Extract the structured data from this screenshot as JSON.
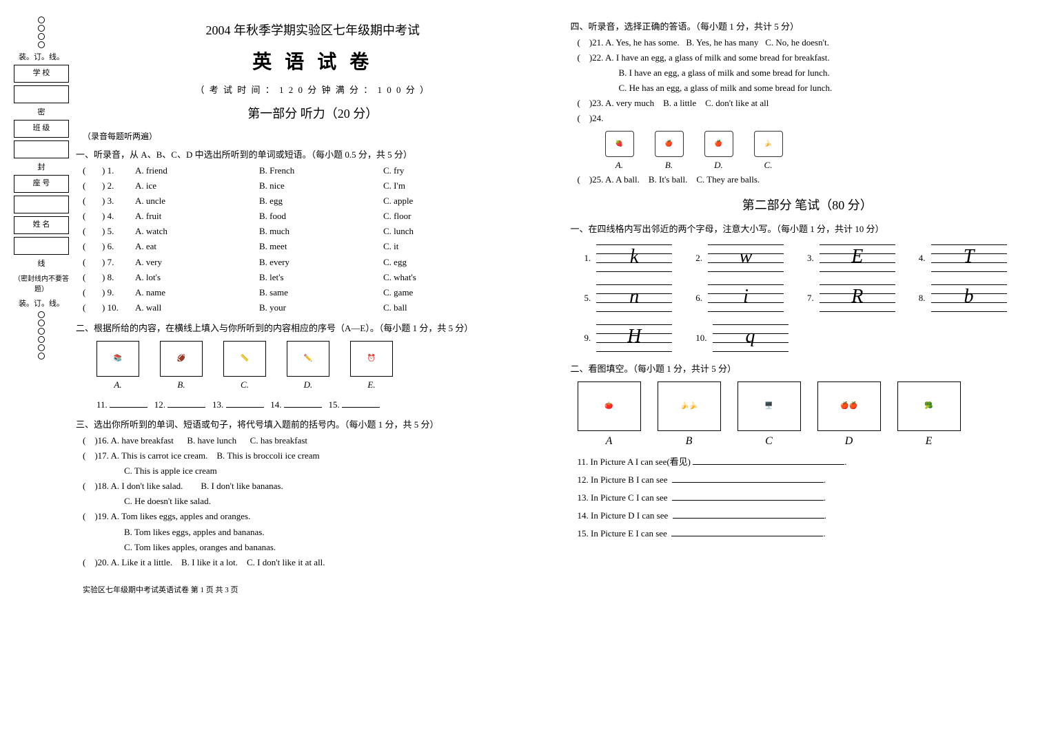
{
  "header": {
    "title": "2004 年秋季学期实验区七年级期中考试",
    "subject": "英 语 试 卷",
    "timeline": "（ 考 试 时 间 ：  1 2 0 分 钟     满 分 ：   1 0 0 分 ）"
  },
  "part1": {
    "heading": "第一部分  听力（20 分）",
    "note": "（录音每题听两遍）",
    "s1": {
      "head": "一、听录音，从 A、B、C、D 中选出所听到的单词或短语。（每小题 0.5 分，共 5 分）",
      "rows": [
        {
          "n": "1.",
          "a": "A. friend",
          "b": "B. French",
          "c": "C. fry"
        },
        {
          "n": "2.",
          "a": "A. ice",
          "b": "B. nice",
          "c": "C. I'm"
        },
        {
          "n": "3.",
          "a": "A. uncle",
          "b": "B. egg",
          "c": "C. apple"
        },
        {
          "n": "4.",
          "a": "A. fruit",
          "b": "B. food",
          "c": "C. floor"
        },
        {
          "n": "5.",
          "a": "A. watch",
          "b": "B. much",
          "c": "C. lunch"
        },
        {
          "n": "6.",
          "a": "A. eat",
          "b": "B. meet",
          "c": "C. it"
        },
        {
          "n": "7.",
          "a": "A. very",
          "b": "B. every",
          "c": "C. egg"
        },
        {
          "n": "8.",
          "a": "A. lot's",
          "b": "B. let's",
          "c": "C. what's"
        },
        {
          "n": "9.",
          "a": "A. name",
          "b": "B. same",
          "c": "C. game"
        },
        {
          "n": "10.",
          "a": "A. wall",
          "b": "B. your",
          "c": "C. ball"
        }
      ]
    },
    "s2": {
      "head": "二、根据所给的内容，在横线上填入与你所听到的内容相应的序号（A—E）。（每小题 1 分，共 5 分）",
      "letters": [
        "A.",
        "B.",
        "C.",
        "D.",
        "E."
      ],
      "nums": [
        "11.",
        "12.",
        "13.",
        "14.",
        "15."
      ]
    },
    "s3": {
      "head": "三、选出你所听到的单词、短语或句子，将代号填入题前的括号内。（每小题 1 分，共 5 分）",
      "q16": {
        "n": ")16.",
        "a": "A. have breakfast",
        "b": "B. have lunch",
        "c": "C. has breakfast"
      },
      "q17": {
        "n": ")17.",
        "a": "A. This is carrot ice cream.",
        "b": "B. This is broccoli ice cream",
        "c": "C. This is apple ice cream"
      },
      "q18": {
        "n": ")18.",
        "a": "A. I don't like salad.",
        "b": "B. I don't like bananas.",
        "c": "C. He doesn't like salad."
      },
      "q19": {
        "n": ")19.",
        "a": "A. Tom likes eggs, apples and oranges.",
        "b": "B. Tom likes eggs, apples and bananas.",
        "c": "C. Tom likes apples, oranges and bananas."
      },
      "q20": {
        "n": ")20.",
        "a": "A. Like it a little.",
        "b": "B. I like it a lot.",
        "c": "C. I don't like it at all."
      }
    },
    "footer": "实验区七年级期中考试英语试卷  第 1 页 共 3 页"
  },
  "part_right": {
    "s4": {
      "head": "四、听录音，选择正确的答语。（每小题 1 分，共计 5 分）",
      "q21": {
        "n": ")21.",
        "a": "A. Yes, he has some.",
        "b": "B. Yes, he has many",
        "c": "C. No, he doesn't."
      },
      "q22": {
        "n": ")22.",
        "a": "A. I have an egg, a glass of milk and some bread for breakfast.",
        "b": "B. I have an egg, a glass of milk and some bread for lunch.",
        "c": "C. He has an egg, a glass of milk and some bread for lunch."
      },
      "q23": {
        "n": ")23.",
        "a": "A. very much",
        "b": "B. a little",
        "c": "C. don't like at all"
      },
      "q24": {
        "n": ")24.",
        "letters": [
          "A.",
          "B.",
          "D.",
          "C."
        ]
      },
      "q25": {
        "n": ")25.",
        "a": "A. A ball.",
        "b": "B. It's ball.",
        "c": "C. They are balls."
      }
    },
    "part2_heading": "第二部分  笔试（80 分）",
    "s_y1": {
      "head": "一、在四线格内写出邻近的两个字母，注意大小写。（每小题 1 分，共计 10 分）",
      "items": [
        {
          "n": "1.",
          "l": "k",
          "show": true
        },
        {
          "n": "2.",
          "l": "w",
          "show": true
        },
        {
          "n": "3.",
          "l": "E",
          "show": true
        },
        {
          "n": "4.",
          "l": "T",
          "show": true
        },
        {
          "n": "5.",
          "l": "n",
          "show": true
        },
        {
          "n": "6.",
          "l": "i",
          "show": true
        },
        {
          "n": "7.",
          "l": "R",
          "show": true
        },
        {
          "n": "8.",
          "l": "b",
          "show": true
        },
        {
          "n": "9.",
          "l": "H",
          "show": true
        },
        {
          "n": "10.",
          "l": "q",
          "show": true
        }
      ]
    },
    "s_y2": {
      "head": "二、看图填空。（每小题 1 分，共计 5 分）",
      "pic_letters": [
        "A",
        "B",
        "C",
        "D",
        "E"
      ],
      "lines": [
        "11. In Picture A I can see(看见)",
        "12. In Picture B I can see",
        "13. In Picture C I can see",
        "14. In Picture D I can see",
        "15. In Picture E I can see"
      ]
    }
  },
  "binding": {
    "labels": [
      "学   校",
      "班   级",
      "座   号",
      "姓   名"
    ],
    "vtext1": "装。订。线。",
    "vtext2": "（密封线内不要答题）",
    "vtext3": "装。订。线。",
    "mi": "密",
    "feng": "封",
    "xian": "线"
  }
}
